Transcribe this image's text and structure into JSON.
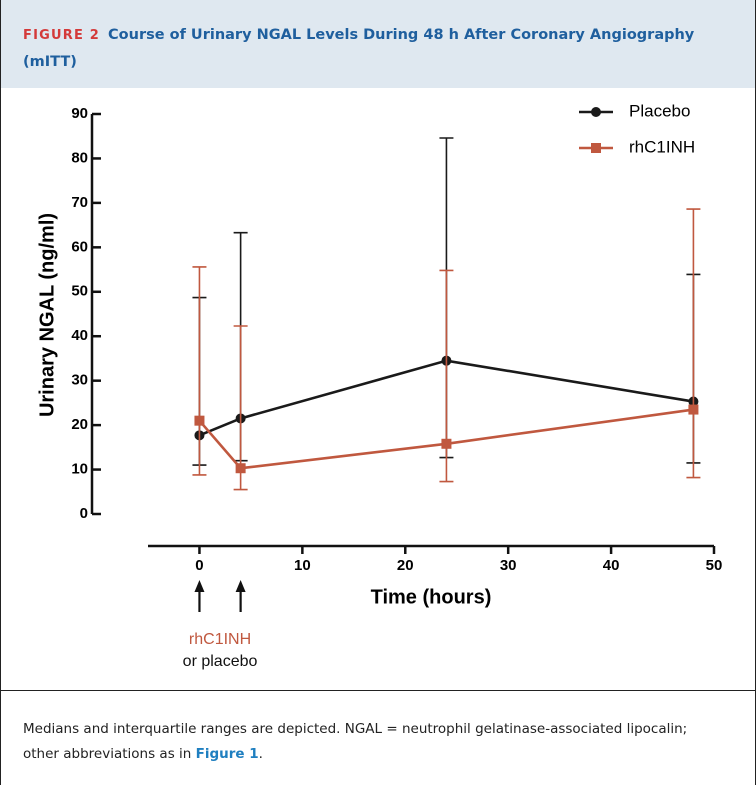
{
  "figure_label": "FIGURE 2",
  "figure_title": "Course of Urinary NGAL Levels During 48 h After Coronary Angiography (mITT)",
  "caption": [
    "Medians and interquartile ranges are depicted. NGAL = neutrophil gelatinase-associated lipocalin; other abbreviations as in ",
    "Figure 1",
    "."
  ],
  "chart_data": {
    "type": "line",
    "x_label": "Time (hours)",
    "y_label": "Urinary NGAL (ng/ml)",
    "xlim": [
      -5,
      50
    ],
    "xticks": [
      0,
      10,
      20,
      30,
      40,
      50
    ],
    "ylim": [
      0,
      90
    ],
    "yticks": [
      0,
      10,
      20,
      30,
      40,
      50,
      60,
      70,
      80,
      90
    ],
    "legend": "top-right",
    "series": [
      {
        "name": "Placebo",
        "color": "#1a1a1a",
        "marker": "circle",
        "x": [
          0,
          4,
          24,
          48
        ],
        "values": [
          17.7,
          21.5,
          34.5,
          25.3
        ],
        "lower": [
          11,
          12,
          12.7,
          11.5
        ],
        "upper": [
          48.7,
          63.3,
          84.6,
          53.9
        ]
      },
      {
        "name": "rhC1INH",
        "color": "#c0583f",
        "marker": "square",
        "x": [
          0,
          4,
          24,
          48
        ],
        "values": [
          21,
          10.3,
          15.8,
          23.5
        ],
        "lower": [
          8.8,
          5.5,
          7.3,
          8.2
        ],
        "upper": [
          55.6,
          42.3,
          54.8,
          68.6
        ]
      }
    ],
    "annotation": {
      "lines": [
        "rhC1INH",
        "or placebo"
      ],
      "arrow_x": [
        0,
        4
      ]
    }
  }
}
